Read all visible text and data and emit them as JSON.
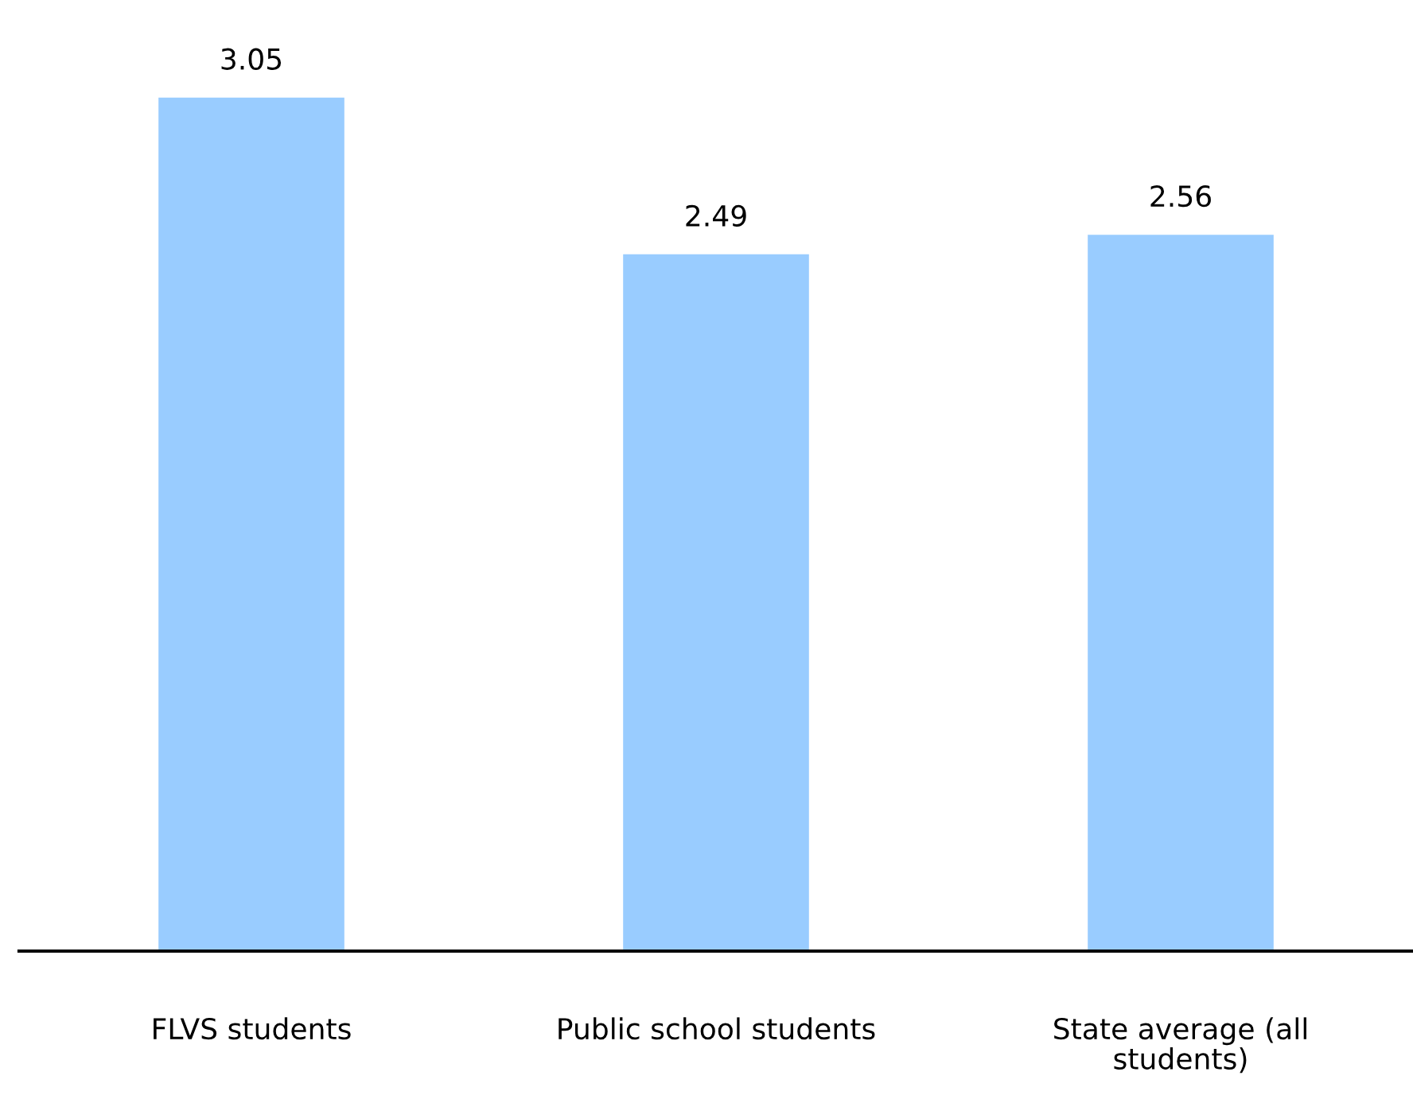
{
  "chart_data": {
    "type": "bar",
    "categories": [
      "FLVS students",
      "Public school students",
      "State average (all students)"
    ],
    "values": [
      3.05,
      2.49,
      2.56
    ],
    "color": "#99ccff",
    "data_labels": true
  }
}
